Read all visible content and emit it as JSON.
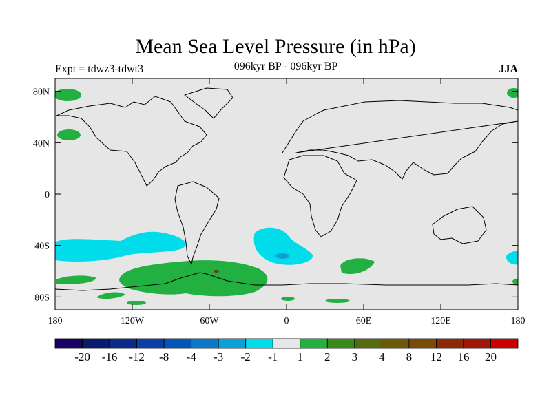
{
  "header": {
    "title": "Mean Sea Level Pressure (in hPa)",
    "subtitle": "096kyr BP - 096kyr BP",
    "left_label": "Expt = tdwz3-tdwt3",
    "right_label": "JJA"
  },
  "map": {
    "projection": "cylindrical-equidistant",
    "lon_range": [
      -180,
      180
    ],
    "lat_range": [
      -90,
      90
    ],
    "background_color": "#e6e6e6",
    "coastline_color": "#000000",
    "lat_ticks": [
      {
        "value": 80,
        "label": "80N"
      },
      {
        "value": 40,
        "label": "40N"
      },
      {
        "value": 0,
        "label": "0"
      },
      {
        "value": -40,
        "label": "40S"
      },
      {
        "value": -80,
        "label": "80S"
      }
    ],
    "lon_ticks": [
      {
        "value": -180,
        "label": "180"
      },
      {
        "value": -120,
        "label": "120W"
      },
      {
        "value": -60,
        "label": "60W"
      },
      {
        "value": 0,
        "label": "0"
      },
      {
        "value": 60,
        "label": "60E"
      },
      {
        "value": 120,
        "label": "120E"
      },
      {
        "value": 180,
        "label": "180"
      }
    ]
  },
  "colorbar": {
    "colors": [
      "#1a0066",
      "#0a1a6e",
      "#0a2a8c",
      "#0b3ea8",
      "#0057b8",
      "#0a79c8",
      "#0aa0d8",
      "#00dcea",
      "#e6e6e6",
      "#22b040",
      "#3a8a1a",
      "#556b10",
      "#6b5a08",
      "#7a4a08",
      "#8c2a08",
      "#a01808",
      "#cc0000"
    ],
    "labels": [
      "-20",
      "-16",
      "-12",
      "-8",
      "-4",
      "-3",
      "-2",
      "-1",
      "1",
      "2",
      "3",
      "4",
      "8",
      "12",
      "16",
      "20"
    ]
  }
}
